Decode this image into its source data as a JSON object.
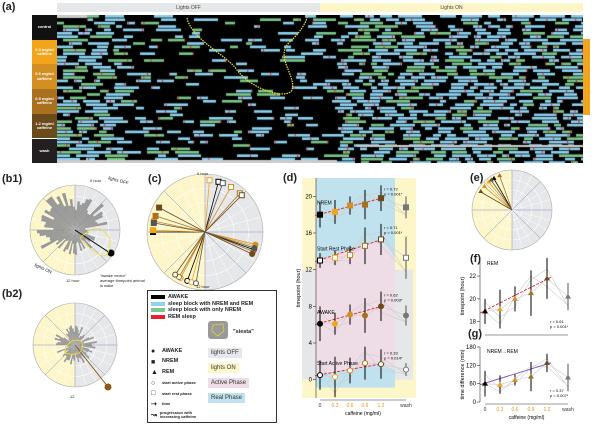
{
  "panel_a": {
    "label": "(a)",
    "header_off": "Lights OFF",
    "header_on": "Lights ON",
    "rows": [
      {
        "label": "control",
        "color": "#111111"
      },
      {
        "label": "0.3 mg/ml caffeine",
        "color": "#f2a51c"
      },
      {
        "label": "0.6 mg/ml caffeine",
        "color": "#d48f23"
      },
      {
        "label": "0.9 mg/ml caffeine",
        "color": "#a8701f"
      },
      {
        "label": "1.2 mg/ml caffeine",
        "color": "#6b4a1c"
      },
      {
        "label": "wash",
        "color": "#231f20"
      }
    ]
  },
  "panel_b1": {
    "label": "(b1)",
    "zero": "0 hour",
    "twelve": "12 hour",
    "lights_off": "lights OFF",
    "lights_on": "lights ON",
    "annotation_title": "\"awake vector\"",
    "annotation_text": "average timepoint animal is wake"
  },
  "panel_b2": {
    "label": "(b2)",
    "twelve": "12"
  },
  "panel_c": {
    "label": "(c)",
    "zero": "0 hour",
    "twelve": "12 hour"
  },
  "panel_e": {
    "label": "(e)"
  },
  "legend": {
    "items": [
      {
        "label": "AWAKE",
        "color": "#000000"
      },
      {
        "label": "sleep block with NREM and REM",
        "color": "#8fd3f0"
      },
      {
        "label": "sleep block with only NREM",
        "color": "#7cc88a"
      },
      {
        "label": "REM sleep",
        "color": "#e8202a"
      }
    ],
    "siesta": "\"siesta\"",
    "markers": [
      {
        "symbol": "●",
        "label": "AWAKE"
      },
      {
        "symbol": "■",
        "label": "NREM"
      },
      {
        "symbol": "▲",
        "label": "REM"
      },
      {
        "symbol": "○",
        "label": "start active phase"
      },
      {
        "symbol": "□",
        "label": "start rest phase"
      },
      {
        "symbol": "⇢",
        "label": "time"
      },
      {
        "symbol": "↝",
        "label": "progression with increasing caffeine"
      }
    ],
    "boxes": [
      {
        "label": "lights OFF",
        "color": "#e6e7e8"
      },
      {
        "label": "lights ON",
        "color": "#fdf6c8"
      },
      {
        "label": "Active Phase",
        "color": "#eedde6"
      },
      {
        "label": "Real Phase",
        "color": "#bfe2ee"
      }
    ]
  },
  "chart_data": [
    {
      "type": "line",
      "panel": "(d)",
      "ylabel": "timepoint (hour)",
      "xlabel": "caffeine (mg/ml)",
      "categories": [
        "0",
        "0.3",
        "0.6",
        "0.9",
        "1.2",
        "wash"
      ],
      "ylim": [
        -2,
        22
      ],
      "yticks": [
        0,
        4,
        8,
        12,
        16,
        20
      ],
      "series": [
        {
          "name": "NREM",
          "values": [
            18,
            18.3,
            19,
            19.1,
            19.8,
            18.8
          ],
          "err": [
            1.4,
            1.3,
            1,
            1.6,
            1.4,
            1.2
          ],
          "marker": "square",
          "stat": [
            "r = 0.72",
            "p = 0.001*"
          ]
        },
        {
          "name": "Start Rest Phase",
          "values": [
            13,
            13.3,
            13.6,
            14.6,
            15.3,
            13.3
          ],
          "err": [
            0.8,
            0.8,
            1,
            2,
            1.7,
            2.3
          ],
          "marker": "open-square",
          "stat": [
            "r = 0.71",
            "p = 0.001*"
          ]
        },
        {
          "name": "AWAKE",
          "values": [
            6.1,
            6.1,
            7.1,
            7.0,
            8.0,
            7.0
          ],
          "err": [
            1.9,
            1.2,
            1.1,
            1.9,
            1.6,
            1.1
          ],
          "marker": "circle",
          "stat": [
            "r = 0.62",
            "p = 0.003*"
          ]
        },
        {
          "name": "Start Active Phase",
          "values": [
            0.5,
            0.3,
            1.0,
            1.8,
            1.7,
            1.1
          ],
          "err": [
            1.6,
            2.2,
            1.4,
            1.8,
            1.6,
            0.7
          ],
          "marker": "open-circle",
          "stat": [
            "r = 0.33",
            "p = 0.014*"
          ]
        }
      ]
    },
    {
      "type": "line",
      "panel": "(f)",
      "title": "REM",
      "ylabel": "timepoint (hour)",
      "categories": [
        "0",
        "0.3",
        "0.6",
        "0.9",
        "1.2",
        "wash"
      ],
      "ylim": [
        17,
        23.5
      ],
      "yticks": [
        18,
        20,
        22
      ],
      "series": [
        {
          "name": "REM",
          "values": [
            18.9,
            19.1,
            20.0,
            20.5,
            21.8,
            20.2
          ],
          "err": [
            1.1,
            1.7,
            1.1,
            2,
            1.8,
            1.2
          ]
        }
      ],
      "stat": [
        "r = 0.61",
        "p = 0.001*"
      ]
    },
    {
      "type": "line",
      "panel": "(g)",
      "title": "NREM→REM",
      "ylabel": "time difference (min)",
      "xlabel": "caffeine (mg/ml)",
      "categories": [
        "0",
        "0.3",
        "0.6",
        "0.9",
        "1.2",
        "wash"
      ],
      "ylim": [
        0,
        180
      ],
      "yticks": [
        0,
        60,
        120,
        180
      ],
      "series": [
        {
          "name": "NREM→REM",
          "values": [
            60,
            57,
            72,
            83,
            128,
            80
          ],
          "err": [
            42,
            30,
            18,
            48,
            30,
            45
          ]
        }
      ],
      "stat": [
        "r = 0.37",
        "p = 0.007*"
      ]
    }
  ]
}
